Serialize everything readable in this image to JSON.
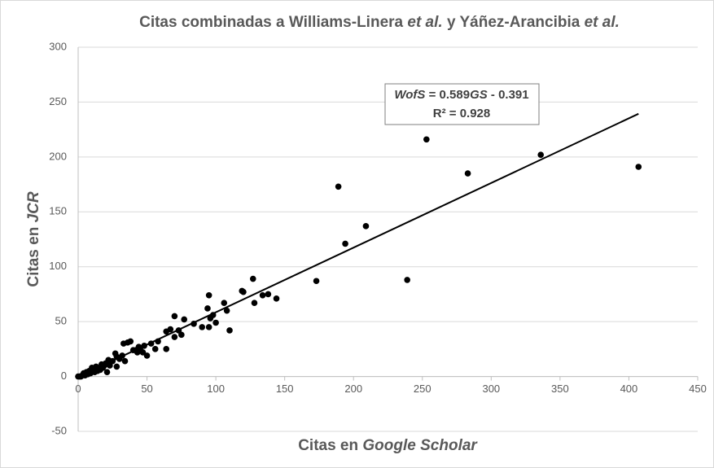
{
  "chart_data": {
    "type": "scatter",
    "title": [
      {
        "text": "Citas combinadas a Williams-Linera ",
        "italic": false
      },
      {
        "text": "et al.",
        "italic": true
      },
      {
        "text": " y Yáñez-Arancibia ",
        "italic": false
      },
      {
        "text": "et al.",
        "italic": true
      }
    ],
    "x_label": [
      {
        "text": "Citas en ",
        "italic": false
      },
      {
        "text": "Google Scholar",
        "italic": true
      }
    ],
    "y_label": [
      {
        "text": "Citas en ",
        "italic": false
      },
      {
        "text": "JCR",
        "italic": true
      }
    ],
    "annotation": [
      [
        {
          "text": "WofS",
          "italic": true
        },
        {
          "text": " = 0.589",
          "italic": false
        },
        {
          "text": "GS",
          "italic": true
        },
        {
          "text": " - 0.391",
          "italic": false
        }
      ],
      [
        {
          "text": "R² = 0.928",
          "italic": false
        }
      ]
    ],
    "trendline": {
      "slope": 0.589,
      "intercept": -0.391,
      "x": [
        0,
        407
      ],
      "color": "#000000"
    },
    "color": "#000000",
    "grid": true,
    "xlim": [
      0,
      450
    ],
    "xticks": [
      0,
      50,
      100,
      150,
      200,
      250,
      300,
      350,
      400,
      450
    ],
    "ylim": [
      -50,
      300
    ],
    "yticks": [
      -50,
      0,
      50,
      100,
      150,
      200,
      250,
      300
    ],
    "x": [
      407,
      336,
      283,
      253,
      239,
      209,
      194,
      189,
      173,
      144,
      138,
      134,
      128,
      127,
      120,
      119,
      110,
      108,
      106,
      100,
      98,
      96,
      95,
      94,
      95,
      90,
      84,
      77,
      75,
      73,
      70,
      70,
      67,
      64,
      64,
      58,
      56,
      53,
      50,
      48,
      47,
      45,
      44,
      43,
      42,
      40,
      38,
      36,
      34,
      33,
      32,
      30,
      28,
      28,
      27,
      25,
      23,
      22,
      21,
      20,
      18,
      17,
      15,
      14,
      13,
      11,
      10,
      9,
      8,
      7,
      6,
      5,
      4,
      3,
      2,
      1,
      0,
      16,
      12,
      19
    ],
    "values": [
      191,
      202,
      185,
      216,
      88,
      137,
      121,
      173,
      87,
      71,
      75,
      74,
      67,
      89,
      77,
      78,
      42,
      60,
      67,
      49,
      56,
      53,
      74,
      62,
      45,
      45,
      48,
      52,
      38,
      42,
      55,
      36,
      43,
      25,
      41,
      32,
      25,
      30,
      19,
      28,
      22,
      25,
      27,
      22,
      24,
      24,
      32,
      31,
      14,
      30,
      19,
      16,
      18,
      9,
      21,
      14,
      10,
      15,
      4,
      12,
      8,
      11,
      7,
      5,
      9,
      5,
      8,
      3,
      5,
      2,
      4,
      1,
      3,
      1,
      0,
      0,
      0,
      6,
      4,
      10
    ]
  }
}
